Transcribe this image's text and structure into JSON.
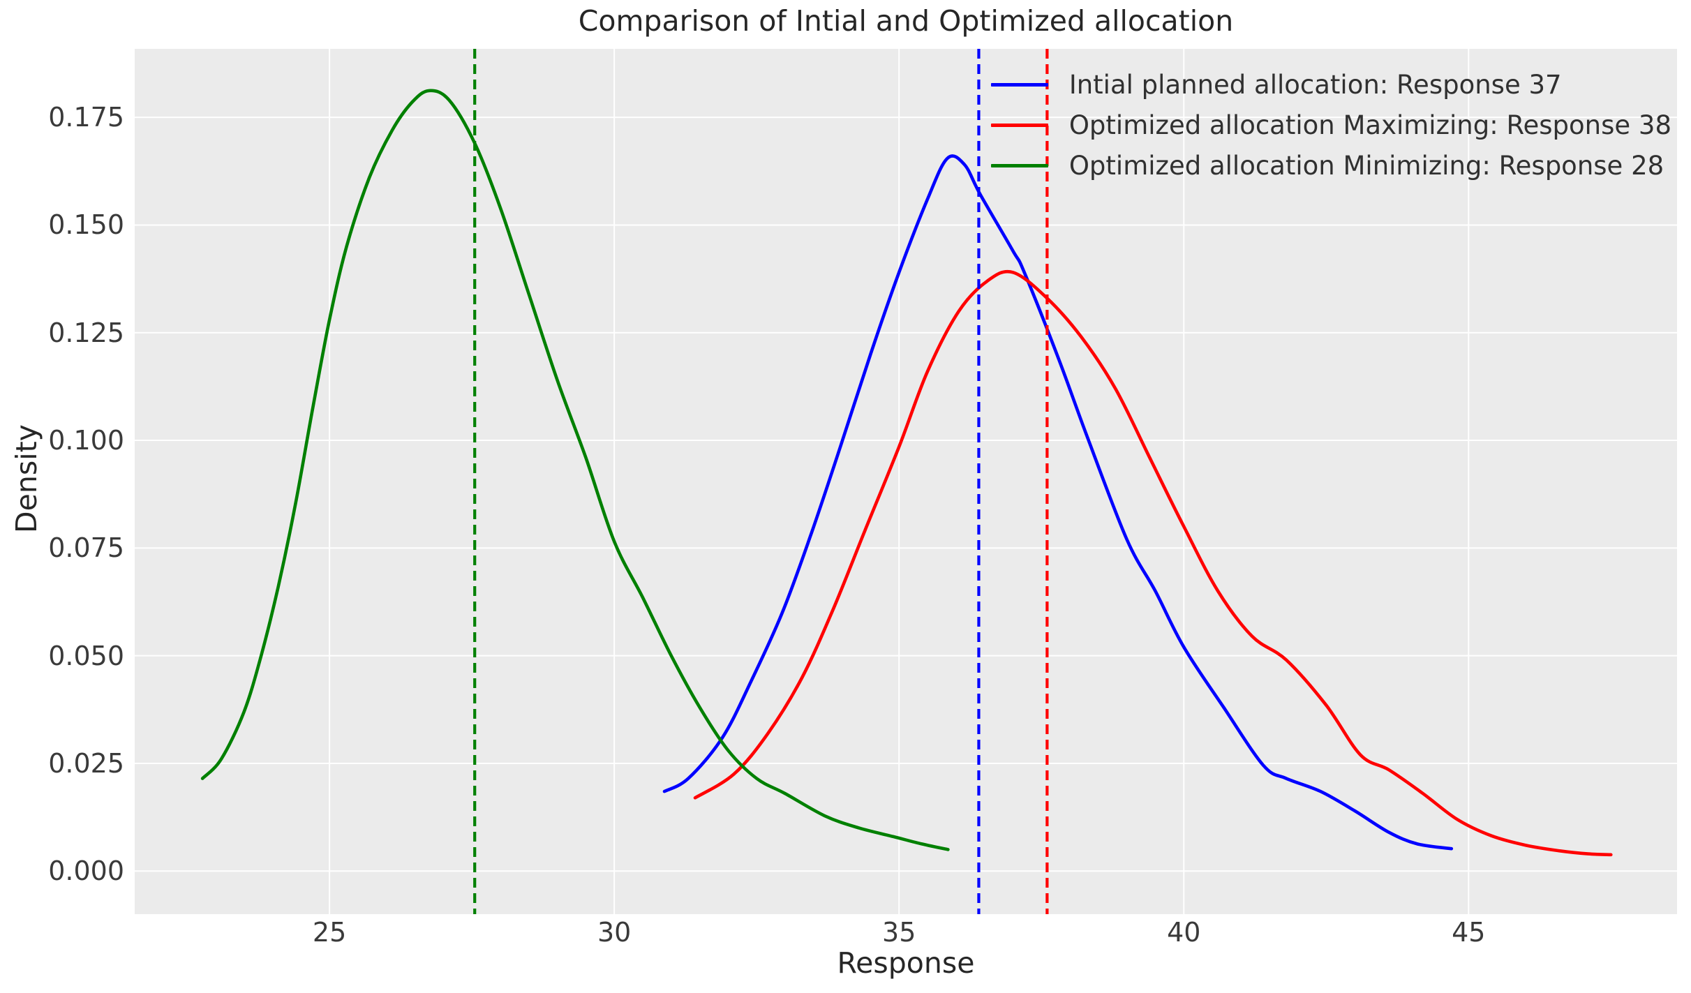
{
  "chart_data": {
    "type": "line",
    "title": "Comparison of Intial and Optimized allocation",
    "xlabel": "Response",
    "ylabel": "Density",
    "x_ticks": [
      "25",
      "30",
      "35",
      "40",
      "45"
    ],
    "x_tick_values": [
      25,
      30,
      35,
      40,
      45
    ],
    "y_ticks": [
      "0.000",
      "0.025",
      "0.050",
      "0.075",
      "0.100",
      "0.125",
      "0.150",
      "0.175"
    ],
    "y_tick_values": [
      0.0,
      0.025,
      0.05,
      0.075,
      0.1,
      0.125,
      0.15,
      0.175
    ],
    "xlim": [
      21.58,
      48.66
    ],
    "ylim": [
      -0.01,
      0.1909
    ],
    "grid": true,
    "legend_position": "upper right",
    "plot_background": "#ebebeb",
    "grid_color": "#ffffff",
    "series": [
      {
        "name": "Intial planned allocation: Response 37",
        "color": "#0000ff",
        "style": "solid",
        "points": [
          [
            30.88,
            0.0185
          ],
          [
            31.3,
            0.0215
          ],
          [
            31.9,
            0.031
          ],
          [
            32.4,
            0.044
          ],
          [
            32.95,
            0.06
          ],
          [
            33.45,
            0.078
          ],
          [
            33.97,
            0.0985
          ],
          [
            34.5,
            0.12
          ],
          [
            35.0,
            0.139
          ],
          [
            35.5,
            0.156
          ],
          [
            35.85,
            0.1655
          ],
          [
            36.15,
            0.164
          ],
          [
            36.43,
            0.157
          ],
          [
            37.0,
            0.144
          ],
          [
            37.2,
            0.139
          ],
          [
            37.8,
            0.119
          ],
          [
            38.3,
            0.101
          ],
          [
            39.0,
            0.077
          ],
          [
            39.5,
            0.065
          ],
          [
            40.0,
            0.052
          ],
          [
            40.7,
            0.038
          ],
          [
            41.4,
            0.0245
          ],
          [
            41.8,
            0.0215
          ],
          [
            42.4,
            0.0185
          ],
          [
            43.0,
            0.014
          ],
          [
            43.6,
            0.009
          ],
          [
            44.1,
            0.0063
          ],
          [
            44.7,
            0.0052
          ]
        ]
      },
      {
        "name": "Optimized allocation Maximizing: Response 38",
        "color": "#ff0000",
        "style": "solid",
        "points": [
          [
            31.42,
            0.017
          ],
          [
            32.1,
            0.0225
          ],
          [
            32.7,
            0.032
          ],
          [
            33.3,
            0.045
          ],
          [
            33.85,
            0.061
          ],
          [
            34.4,
            0.079
          ],
          [
            35.0,
            0.0985
          ],
          [
            35.5,
            0.116
          ],
          [
            36.05,
            0.13
          ],
          [
            36.55,
            0.137
          ],
          [
            37.0,
            0.139
          ],
          [
            37.6,
            0.133
          ],
          [
            38.2,
            0.124
          ],
          [
            38.8,
            0.112
          ],
          [
            39.4,
            0.096
          ],
          [
            40.0,
            0.08
          ],
          [
            40.6,
            0.065
          ],
          [
            41.2,
            0.0545
          ],
          [
            41.8,
            0.049
          ],
          [
            42.5,
            0.0385
          ],
          [
            43.1,
            0.027
          ],
          [
            43.6,
            0.0235
          ],
          [
            44.2,
            0.018
          ],
          [
            44.8,
            0.012
          ],
          [
            45.4,
            0.0082
          ],
          [
            46.0,
            0.006
          ],
          [
            46.6,
            0.0047
          ],
          [
            47.1,
            0.004
          ],
          [
            47.5,
            0.0038
          ]
        ]
      },
      {
        "name": "Optimized allocation Minimizing: Response 28",
        "color": "#008000",
        "style": "solid",
        "points": [
          [
            22.77,
            0.0215
          ],
          [
            23.1,
            0.026
          ],
          [
            23.5,
            0.037
          ],
          [
            23.8,
            0.05
          ],
          [
            24.1,
            0.066
          ],
          [
            24.4,
            0.085
          ],
          [
            24.7,
            0.107
          ],
          [
            25.0,
            0.128
          ],
          [
            25.3,
            0.145
          ],
          [
            25.7,
            0.161
          ],
          [
            26.1,
            0.172
          ],
          [
            26.45,
            0.1785
          ],
          [
            26.75,
            0.1812
          ],
          [
            27.1,
            0.179
          ],
          [
            27.55,
            0.169
          ],
          [
            28.0,
            0.154
          ],
          [
            28.5,
            0.134
          ],
          [
            29.0,
            0.114
          ],
          [
            29.5,
            0.096
          ],
          [
            30.0,
            0.0765
          ],
          [
            30.5,
            0.0635
          ],
          [
            31.0,
            0.05
          ],
          [
            31.5,
            0.038
          ],
          [
            32.0,
            0.028
          ],
          [
            32.5,
            0.0215
          ],
          [
            33.0,
            0.018
          ],
          [
            33.7,
            0.0128
          ],
          [
            34.3,
            0.01
          ],
          [
            34.9,
            0.008
          ],
          [
            35.4,
            0.0063
          ],
          [
            35.86,
            0.005
          ]
        ]
      }
    ],
    "vlines": [
      {
        "x": 36.4,
        "color": "#0000ff",
        "style": "dashed"
      },
      {
        "x": 37.6,
        "color": "#ff0000",
        "style": "dashed"
      },
      {
        "x": 27.55,
        "color": "#008000",
        "style": "dashed"
      }
    ]
  }
}
